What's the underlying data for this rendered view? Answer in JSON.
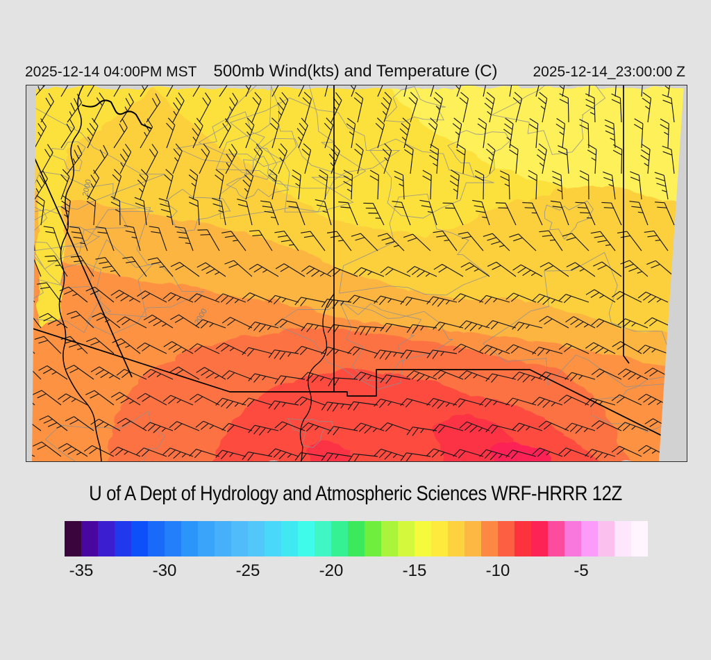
{
  "header": {
    "left_timestamp": "2025-12-14 04:00PM MST",
    "title": "500mb Wind(kts) and Temperature (C)",
    "right_timestamp": "2025-12-14_23:00:00 Z"
  },
  "footer": {
    "attribution": "U of A Dept of Hydrology and Atmospheric Sciences WRF-HRRR 12Z"
  },
  "map": {
    "contour_label": "2000",
    "colors": {
      "page_background": "#e3e3e3",
      "outside_domain_gray": "#d2d2d2",
      "state_border": "#000000",
      "wind_barb": "#161616",
      "terrain_contour": "#8f8f8f",
      "bands": {
        "base_yellow": "#fce13c",
        "pale_yellow": "#fdf058",
        "gold": "#fcd03e",
        "amber": "#fdb542",
        "orange": "#fd9343",
        "deep_orange": "#fd7243",
        "red_orange": "#fd4c40",
        "red": "#fc3144",
        "crimson": "#fd2357"
      }
    }
  },
  "colorbar": {
    "units": "C",
    "min_value": -36,
    "max_value": -1,
    "tick_labels": [
      "-35",
      "-30",
      "-25",
      "-20",
      "-15",
      "-10",
      "-5"
    ],
    "cell_colors": [
      "#3a053d",
      "#4a07a0",
      "#3b1ed0",
      "#2238ec",
      "#0d50fa",
      "#1a6afa",
      "#2380fa",
      "#2c95fa",
      "#3aa4fa",
      "#47b0fa",
      "#50bcfa",
      "#52c8fa",
      "#4ad8fa",
      "#40e9f2",
      "#3efbea",
      "#40f6c4",
      "#36f094",
      "#3ce85c",
      "#70ee3e",
      "#aaf53b",
      "#d4f93c",
      "#f6fa3c",
      "#fdea3c",
      "#fdd23e",
      "#fdb743",
      "#fd8843",
      "#fd5f43",
      "#fc323e",
      "#fd2355",
      "#fd4b9e",
      "#f978dd",
      "#fb9cfa",
      "#fcc0ef",
      "#fee6fd",
      "#fef5ff"
    ]
  }
}
